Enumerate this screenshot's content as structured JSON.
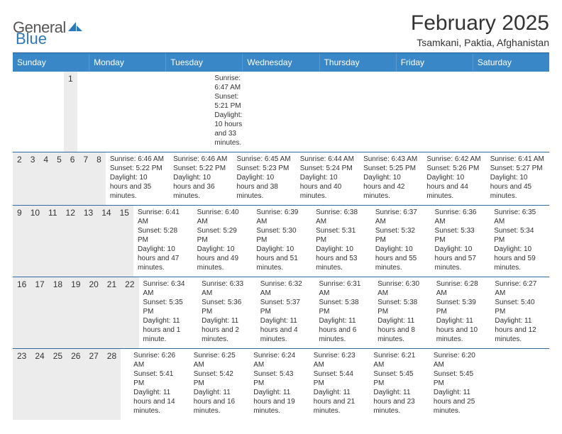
{
  "logo": {
    "text_a": "General",
    "text_b": "Blue",
    "color_a": "#666666",
    "color_b": "#2f77bb"
  },
  "header": {
    "title": "February 2025",
    "location": "Tsamkani, Paktia, Afghanistan"
  },
  "colors": {
    "header_bar": "#3a87c8",
    "week_divider": "#2f6aa3",
    "daynum_bg": "#ececec"
  },
  "day_names": [
    "Sunday",
    "Monday",
    "Tuesday",
    "Wednesday",
    "Thursday",
    "Friday",
    "Saturday"
  ],
  "weeks": [
    [
      {
        "n": "",
        "sunrise": "",
        "sunset": "",
        "daylight": ""
      },
      {
        "n": "",
        "sunrise": "",
        "sunset": "",
        "daylight": ""
      },
      {
        "n": "",
        "sunrise": "",
        "sunset": "",
        "daylight": ""
      },
      {
        "n": "",
        "sunrise": "",
        "sunset": "",
        "daylight": ""
      },
      {
        "n": "",
        "sunrise": "",
        "sunset": "",
        "daylight": ""
      },
      {
        "n": "",
        "sunrise": "",
        "sunset": "",
        "daylight": ""
      },
      {
        "n": "1",
        "sunrise": "Sunrise: 6:47 AM",
        "sunset": "Sunset: 5:21 PM",
        "daylight": "Daylight: 10 hours and 33 minutes."
      }
    ],
    [
      {
        "n": "2",
        "sunrise": "Sunrise: 6:46 AM",
        "sunset": "Sunset: 5:22 PM",
        "daylight": "Daylight: 10 hours and 35 minutes."
      },
      {
        "n": "3",
        "sunrise": "Sunrise: 6:46 AM",
        "sunset": "Sunset: 5:22 PM",
        "daylight": "Daylight: 10 hours and 36 minutes."
      },
      {
        "n": "4",
        "sunrise": "Sunrise: 6:45 AM",
        "sunset": "Sunset: 5:23 PM",
        "daylight": "Daylight: 10 hours and 38 minutes."
      },
      {
        "n": "5",
        "sunrise": "Sunrise: 6:44 AM",
        "sunset": "Sunset: 5:24 PM",
        "daylight": "Daylight: 10 hours and 40 minutes."
      },
      {
        "n": "6",
        "sunrise": "Sunrise: 6:43 AM",
        "sunset": "Sunset: 5:25 PM",
        "daylight": "Daylight: 10 hours and 42 minutes."
      },
      {
        "n": "7",
        "sunrise": "Sunrise: 6:42 AM",
        "sunset": "Sunset: 5:26 PM",
        "daylight": "Daylight: 10 hours and 44 minutes."
      },
      {
        "n": "8",
        "sunrise": "Sunrise: 6:41 AM",
        "sunset": "Sunset: 5:27 PM",
        "daylight": "Daylight: 10 hours and 45 minutes."
      }
    ],
    [
      {
        "n": "9",
        "sunrise": "Sunrise: 6:41 AM",
        "sunset": "Sunset: 5:28 PM",
        "daylight": "Daylight: 10 hours and 47 minutes."
      },
      {
        "n": "10",
        "sunrise": "Sunrise: 6:40 AM",
        "sunset": "Sunset: 5:29 PM",
        "daylight": "Daylight: 10 hours and 49 minutes."
      },
      {
        "n": "11",
        "sunrise": "Sunrise: 6:39 AM",
        "sunset": "Sunset: 5:30 PM",
        "daylight": "Daylight: 10 hours and 51 minutes."
      },
      {
        "n": "12",
        "sunrise": "Sunrise: 6:38 AM",
        "sunset": "Sunset: 5:31 PM",
        "daylight": "Daylight: 10 hours and 53 minutes."
      },
      {
        "n": "13",
        "sunrise": "Sunrise: 6:37 AM",
        "sunset": "Sunset: 5:32 PM",
        "daylight": "Daylight: 10 hours and 55 minutes."
      },
      {
        "n": "14",
        "sunrise": "Sunrise: 6:36 AM",
        "sunset": "Sunset: 5:33 PM",
        "daylight": "Daylight: 10 hours and 57 minutes."
      },
      {
        "n": "15",
        "sunrise": "Sunrise: 6:35 AM",
        "sunset": "Sunset: 5:34 PM",
        "daylight": "Daylight: 10 hours and 59 minutes."
      }
    ],
    [
      {
        "n": "16",
        "sunrise": "Sunrise: 6:34 AM",
        "sunset": "Sunset: 5:35 PM",
        "daylight": "Daylight: 11 hours and 1 minute."
      },
      {
        "n": "17",
        "sunrise": "Sunrise: 6:33 AM",
        "sunset": "Sunset: 5:36 PM",
        "daylight": "Daylight: 11 hours and 2 minutes."
      },
      {
        "n": "18",
        "sunrise": "Sunrise: 6:32 AM",
        "sunset": "Sunset: 5:37 PM",
        "daylight": "Daylight: 11 hours and 4 minutes."
      },
      {
        "n": "19",
        "sunrise": "Sunrise: 6:31 AM",
        "sunset": "Sunset: 5:38 PM",
        "daylight": "Daylight: 11 hours and 6 minutes."
      },
      {
        "n": "20",
        "sunrise": "Sunrise: 6:30 AM",
        "sunset": "Sunset: 5:38 PM",
        "daylight": "Daylight: 11 hours and 8 minutes."
      },
      {
        "n": "21",
        "sunrise": "Sunrise: 6:28 AM",
        "sunset": "Sunset: 5:39 PM",
        "daylight": "Daylight: 11 hours and 10 minutes."
      },
      {
        "n": "22",
        "sunrise": "Sunrise: 6:27 AM",
        "sunset": "Sunset: 5:40 PM",
        "daylight": "Daylight: 11 hours and 12 minutes."
      }
    ],
    [
      {
        "n": "23",
        "sunrise": "Sunrise: 6:26 AM",
        "sunset": "Sunset: 5:41 PM",
        "daylight": "Daylight: 11 hours and 14 minutes."
      },
      {
        "n": "24",
        "sunrise": "Sunrise: 6:25 AM",
        "sunset": "Sunset: 5:42 PM",
        "daylight": "Daylight: 11 hours and 16 minutes."
      },
      {
        "n": "25",
        "sunrise": "Sunrise: 6:24 AM",
        "sunset": "Sunset: 5:43 PM",
        "daylight": "Daylight: 11 hours and 19 minutes."
      },
      {
        "n": "26",
        "sunrise": "Sunrise: 6:23 AM",
        "sunset": "Sunset: 5:44 PM",
        "daylight": "Daylight: 11 hours and 21 minutes."
      },
      {
        "n": "27",
        "sunrise": "Sunrise: 6:21 AM",
        "sunset": "Sunset: 5:45 PM",
        "daylight": "Daylight: 11 hours and 23 minutes."
      },
      {
        "n": "28",
        "sunrise": "Sunrise: 6:20 AM",
        "sunset": "Sunset: 5:45 PM",
        "daylight": "Daylight: 11 hours and 25 minutes."
      },
      {
        "n": "",
        "sunrise": "",
        "sunset": "",
        "daylight": ""
      }
    ]
  ]
}
